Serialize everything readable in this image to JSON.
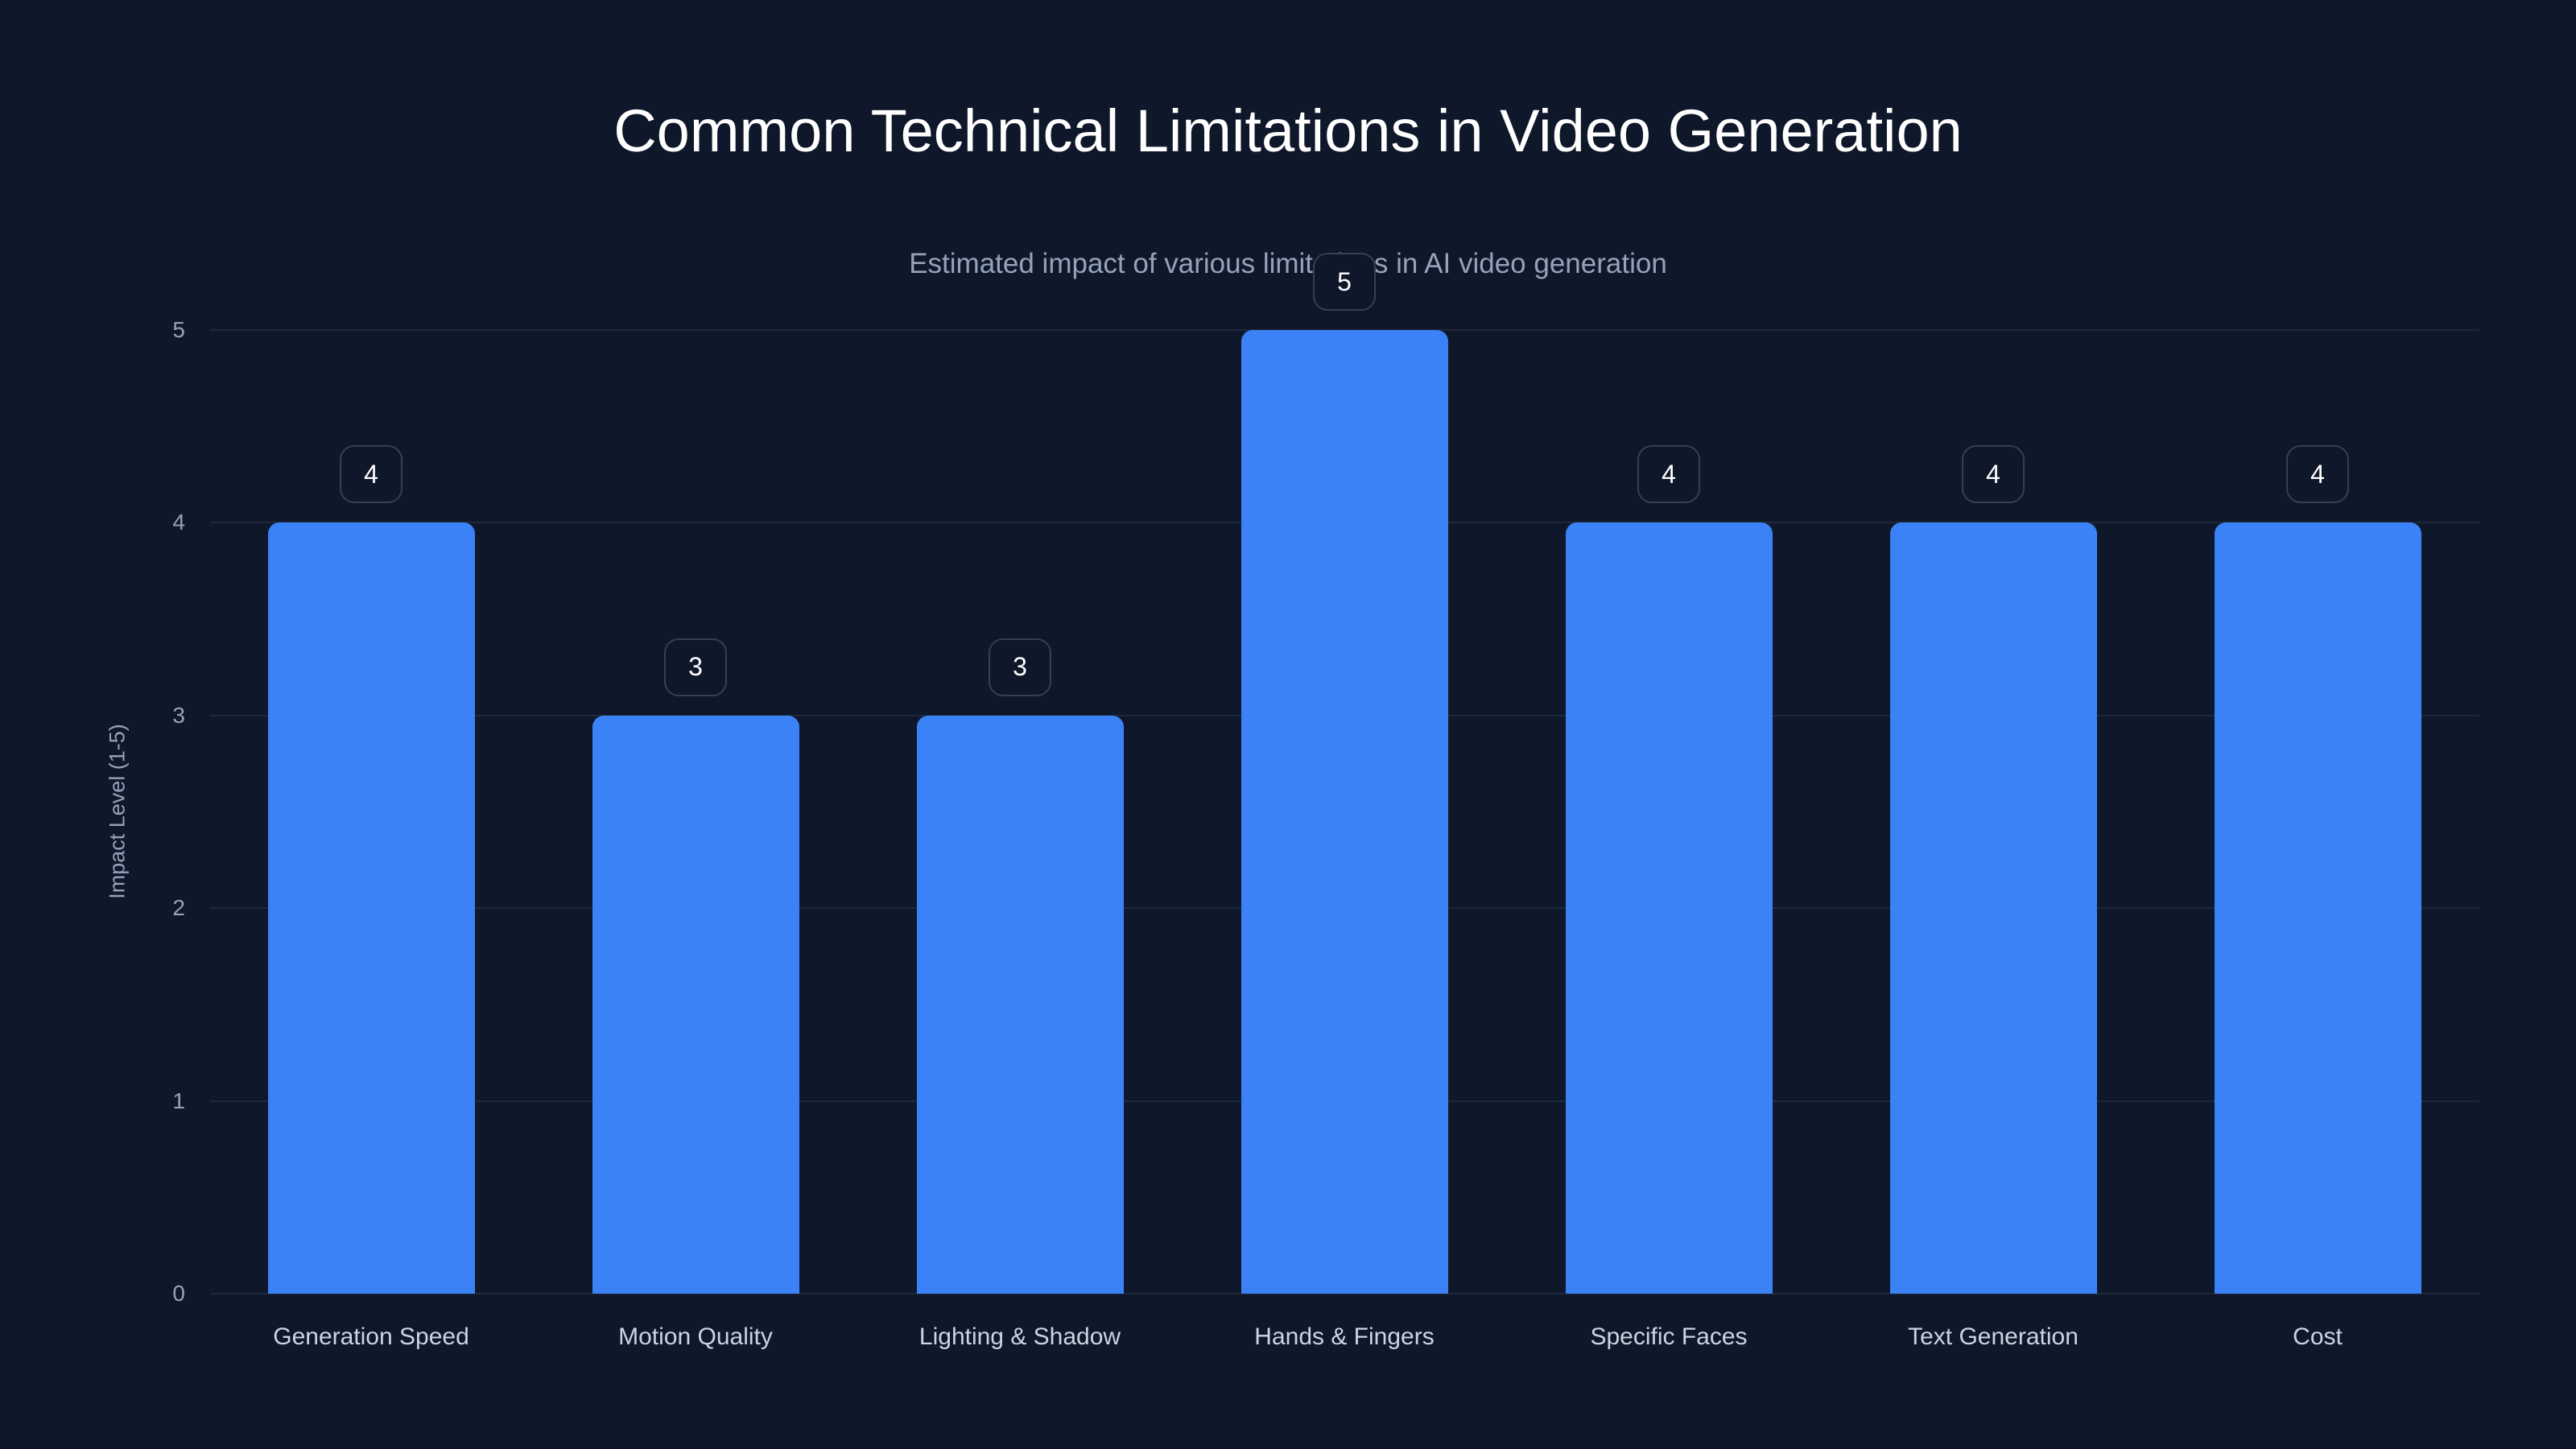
{
  "header": {
    "title": "Common Technical Limitations in Video Generation",
    "subtitle": "Estimated impact of various limitations in AI video generation"
  },
  "axes": {
    "ylabel": "Impact Level (1-5)",
    "yticks": [
      "0",
      "1",
      "2",
      "3",
      "4",
      "5"
    ]
  },
  "colors": {
    "background": "#0f172a",
    "bar": "#3b82f6",
    "grid": "#1e293b",
    "label_border": "#334155"
  },
  "chart_data": {
    "type": "bar",
    "title": "Common Technical Limitations in Video Generation",
    "subtitle": "Estimated impact of various limitations in AI video generation",
    "categories": [
      "Generation Speed",
      "Motion Quality",
      "Lighting & Shadow",
      "Hands & Fingers",
      "Specific Faces",
      "Text Generation",
      "Cost"
    ],
    "values": [
      4,
      3,
      3,
      5,
      4,
      4,
      4
    ],
    "value_labels": [
      "4",
      "3",
      "3",
      "5",
      "4",
      "4",
      "4"
    ],
    "xlabel": "",
    "ylabel": "Impact Level (1-5)",
    "ylim": [
      0,
      5
    ],
    "yticks": [
      0,
      1,
      2,
      3,
      4,
      5
    ],
    "grid": true,
    "legend": "none"
  }
}
